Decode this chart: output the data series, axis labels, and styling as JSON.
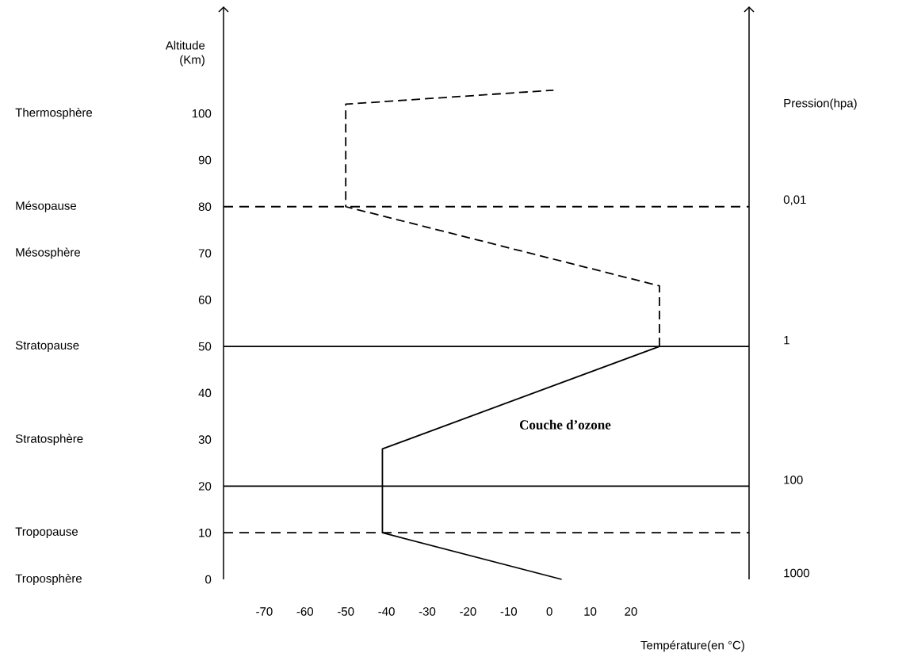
{
  "chart_data": {
    "type": "line",
    "xlabel": "Température(en °C)",
    "ylabel": "Altitude (Km)",
    "y2label": "Pression(hpa)",
    "xlim": [
      -80,
      49
    ],
    "ylim": [
      0,
      123
    ],
    "xticks": [
      -70,
      -60,
      -50,
      -40,
      -30,
      -20,
      -10,
      0,
      10,
      20
    ],
    "yticks": [
      0,
      10,
      20,
      30,
      40,
      50,
      60,
      70,
      80,
      90,
      100
    ],
    "series": [
      {
        "color": "#000000",
        "line_style": "solid",
        "x": [
          3,
          -41,
          -41,
          27
        ],
        "values": [
          0,
          10,
          28,
          50
        ]
      },
      {
        "color": "#000000",
        "line_style": "dashed",
        "x": [
          27,
          27,
          -50,
          -50,
          1
        ],
        "values": [
          50,
          63,
          80,
          102,
          105
        ]
      }
    ],
    "ref_lines": [
      {
        "axis": "y",
        "value": 10,
        "line_style": "dashed"
      },
      {
        "axis": "y",
        "value": 20,
        "line_style": "solid"
      },
      {
        "axis": "y",
        "value": 50,
        "line_style": "solid"
      },
      {
        "axis": "y",
        "value": 80,
        "line_style": "dashed"
      }
    ],
    "annotations": [
      "Thermosphère",
      "Mésopause",
      "Mésosphère",
      "Stratopause",
      "Stratosphère",
      "Tropopause",
      "Troposphère",
      "Couche d’ozone",
      "1000",
      "100",
      "1",
      "0,01"
    ]
  }
}
